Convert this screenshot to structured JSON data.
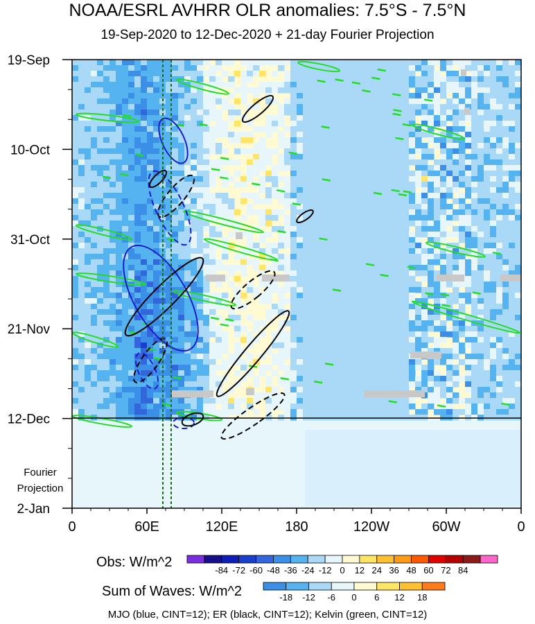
{
  "chart_data": {
    "type": "heatmap",
    "title": "NOAA/ESRL AVHRR OLR anomalies: 7.5°S - 7.5°N",
    "subtitle": "19-Sep-2020 to 12-Dec-2020 + 21-day Fourier Projection",
    "x_ticks": [
      "0",
      "60E",
      "120E",
      "180",
      "120W",
      "60W",
      "0"
    ],
    "y_ticks": [
      "19-Sep",
      "10-Oct",
      "31-Oct",
      "21-Nov",
      "12-Dec",
      "2-Jan"
    ],
    "projection_label": [
      "Fourier",
      "Projection"
    ],
    "obs_colorbar": {
      "label": "Obs: W/m^2",
      "ticks": [
        "-84",
        "-72",
        "-60",
        "-48",
        "-36",
        "-24",
        "-12",
        "0",
        "12",
        "24",
        "36",
        "48",
        "60",
        "72",
        "84"
      ],
      "colors": [
        "#7a2ee0",
        "#1a0d8c",
        "#0d1fb8",
        "#1a3fcc",
        "#3366dd",
        "#3b8fe6",
        "#55b4f0",
        "#a9d9f7",
        "#e6f6fb",
        "#fffad2",
        "#ffe566",
        "#ffc133",
        "#ff9a1a",
        "#ff5a00",
        "#e00000",
        "#b30000",
        "#8c1a1a",
        "#ff66cc"
      ]
    },
    "waves_colorbar": {
      "label": "Sum of Waves: W/m^2",
      "ticks": [
        "-18",
        "-12",
        "-6",
        "0",
        "6",
        "12",
        "18"
      ],
      "colors": [
        "#3b8fe6",
        "#55b4f0",
        "#a9d9f7",
        "#e6f6fb",
        "#fffad2",
        "#ffe566",
        "#ffc133",
        "#ff7a1a"
      ]
    },
    "footer": "MJO (blue, CINT=12); ER (black, CINT=12); Kelvin (green, CINT=12)",
    "contour_colors": {
      "mjo": "#1a1acc",
      "er": "#000000",
      "kelvin": "#22dd22"
    }
  }
}
